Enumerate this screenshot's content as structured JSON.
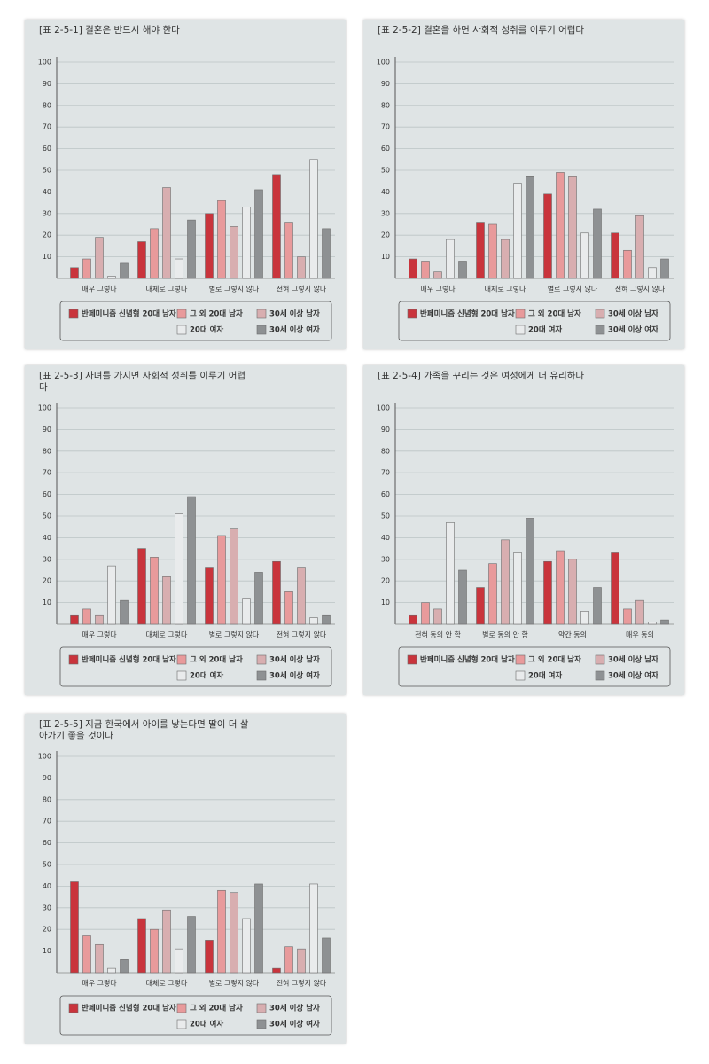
{
  "chart_data": [
    {
      "type": "bar",
      "title": "[표 2-5-1] 결혼은 반드시 해야 한다",
      "categories": [
        "매우 그렇다",
        "대체로 그렇다",
        "별로 그렇지 않다",
        "전혀 그렇지 않다"
      ],
      "ylim": [
        0,
        100
      ],
      "yticks": [
        10,
        20,
        30,
        40,
        50,
        60,
        70,
        80,
        90,
        100
      ],
      "grid": true,
      "series": [
        {
          "name": "반페미니즘 신념형 20대 남자",
          "color": "#c9343c",
          "values": [
            5,
            17,
            30,
            48
          ]
        },
        {
          "name": "그 외 20대 남자",
          "color": "#e89a9b",
          "values": [
            9,
            23,
            36,
            26
          ]
        },
        {
          "name": "30세 이상 남자",
          "color": "#d8aeb0",
          "values": [
            19,
            42,
            24,
            10
          ]
        },
        {
          "name": "20대 여자",
          "color": "#e9ebec",
          "values": [
            1,
            9,
            33,
            55
          ]
        },
        {
          "name": "30세 이상 여자",
          "color": "#8e9193",
          "values": [
            7,
            27,
            41,
            23
          ]
        }
      ]
    },
    {
      "type": "bar",
      "title": "[표 2-5-2] 결혼을 하면 사회적 성취를 이루기 어렵다",
      "categories": [
        "매우 그렇다",
        "대체로 그렇다",
        "별로 그렇지 않다",
        "전혀 그렇지 않다"
      ],
      "ylim": [
        0,
        100
      ],
      "yticks": [
        10,
        20,
        30,
        40,
        50,
        60,
        70,
        80,
        90,
        100
      ],
      "grid": true,
      "series": [
        {
          "name": "반페미니즘 신념형 20대 남자",
          "color": "#c9343c",
          "values": [
            9,
            26,
            39,
            21
          ]
        },
        {
          "name": "그 외 20대 남자",
          "color": "#e89a9b",
          "values": [
            8,
            25,
            49,
            13
          ]
        },
        {
          "name": "30세 이상 남자",
          "color": "#d8aeb0",
          "values": [
            3,
            18,
            47,
            29
          ]
        },
        {
          "name": "20대 여자",
          "color": "#e9ebec",
          "values": [
            18,
            44,
            21,
            5
          ]
        },
        {
          "name": "30세 이상 여자",
          "color": "#8e9193",
          "values": [
            8,
            47,
            32,
            9
          ]
        }
      ]
    },
    {
      "type": "bar",
      "title": "[표 2-5-3] 자녀를 가지면 사회적 성취를 이루기 어렵다",
      "categories": [
        "매우 그렇다",
        "대체로 그렇다",
        "별로 그렇지 않다",
        "전혀 그렇지 않다"
      ],
      "ylim": [
        0,
        100
      ],
      "yticks": [
        10,
        20,
        30,
        40,
        50,
        60,
        70,
        80,
        90,
        100
      ],
      "grid": true,
      "series": [
        {
          "name": "반페미니즘 신념형 20대 남자",
          "color": "#c9343c",
          "values": [
            4,
            35,
            26,
            29
          ]
        },
        {
          "name": "그 외 20대 남자",
          "color": "#e89a9b",
          "values": [
            7,
            31,
            41,
            15
          ]
        },
        {
          "name": "30세 이상 남자",
          "color": "#d8aeb0",
          "values": [
            4,
            22,
            44,
            26
          ]
        },
        {
          "name": "20대 여자",
          "color": "#e9ebec",
          "values": [
            27,
            51,
            12,
            3
          ]
        },
        {
          "name": "30세 이상 여자",
          "color": "#8e9193",
          "values": [
            11,
            59,
            24,
            4
          ]
        }
      ]
    },
    {
      "type": "bar",
      "title": "[표 2-5-4] 가족을 꾸리는 것은 여성에게 더 유리하다",
      "categories": [
        "전혀 동의 안 함",
        "별로 동의 안 함",
        "약간 동의",
        "매우 동의"
      ],
      "ylim": [
        0,
        100
      ],
      "yticks": [
        10,
        20,
        30,
        40,
        50,
        60,
        70,
        80,
        90,
        100
      ],
      "grid": true,
      "series": [
        {
          "name": "반페미니즘 신념형 20대 남자",
          "color": "#c9343c",
          "values": [
            4,
            17,
            29,
            33
          ]
        },
        {
          "name": "그 외 20대 남자",
          "color": "#e89a9b",
          "values": [
            10,
            28,
            34,
            7
          ]
        },
        {
          "name": "30세 이상 남자",
          "color": "#d8aeb0",
          "values": [
            7,
            39,
            30,
            11
          ]
        },
        {
          "name": "20대 여자",
          "color": "#e9ebec",
          "values": [
            47,
            33,
            6,
            1
          ]
        },
        {
          "name": "30세 이상 여자",
          "color": "#8e9193",
          "values": [
            25,
            49,
            17,
            2
          ]
        }
      ]
    },
    {
      "type": "bar",
      "title": "[표 2-5-5] 지금 한국에서 아이를 낳는다면 딸이 더 살아가기 좋을 것이다",
      "categories": [
        "매우 그렇다",
        "대체로 그렇다",
        "별로 그렇지 않다",
        "전혀 그렇지 않다"
      ],
      "ylim": [
        0,
        100
      ],
      "yticks": [
        10,
        20,
        30,
        40,
        50,
        60,
        70,
        80,
        90,
        100
      ],
      "grid": true,
      "series": [
        {
          "name": "반페미니즘 신념형 20대 남자",
          "color": "#c9343c",
          "values": [
            42,
            25,
            15,
            2
          ]
        },
        {
          "name": "그 외 20대 남자",
          "color": "#e89a9b",
          "values": [
            17,
            20,
            38,
            12
          ]
        },
        {
          "name": "30세 이상 남자",
          "color": "#d8aeb0",
          "values": [
            13,
            29,
            37,
            11
          ]
        },
        {
          "name": "20대 여자",
          "color": "#e9ebec",
          "values": [
            2,
            11,
            25,
            41
          ]
        },
        {
          "name": "30세 이상 여자",
          "color": "#8e9193",
          "values": [
            6,
            26,
            41,
            16
          ]
        }
      ]
    }
  ]
}
